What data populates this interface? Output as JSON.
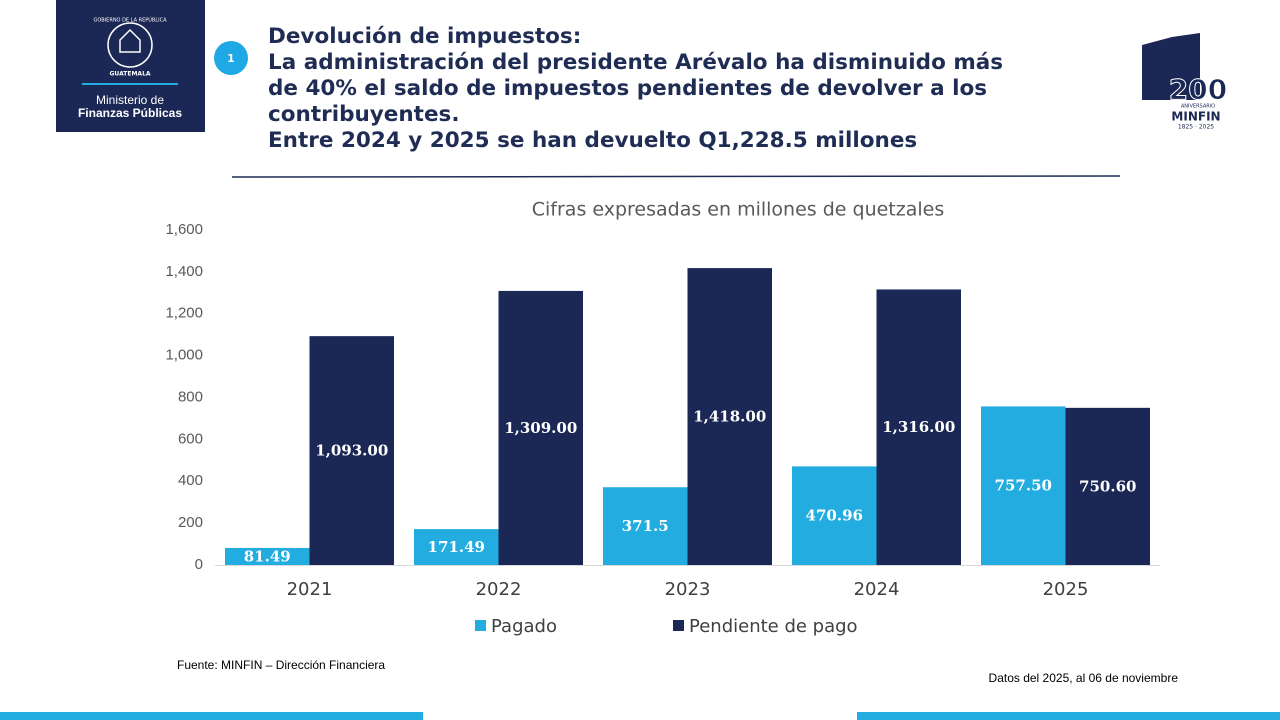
{
  "header": {
    "badge": "1",
    "title_lines": [
      "Devolución de impuestos:",
      "La administración del presidente Arévalo ha disminuido más",
      "de 40%  el saldo de impuestos pendientes de devolver a los",
      "contribuyentes.",
      "Entre 2024 y 2025 se han devuelto Q1,228.5 millones"
    ]
  },
  "logo_left": {
    "seal_top": "GOBIERNO DE LA REPÚBLICA",
    "seal_bottom": "GUATEMALA",
    "line1": "Ministerio de",
    "line2": "Finanzas Públicas"
  },
  "logo_right": {
    "number": "200",
    "caption": "ANIVERSARIO",
    "name": "MINFIN",
    "years": "1825 · 2025"
  },
  "chart_data": {
    "type": "bar",
    "subtitle": "Cifras expresadas en millones de quetzales",
    "categories": [
      "2021",
      "2022",
      "2023",
      "2024",
      "2025"
    ],
    "series": [
      {
        "name": "Pagado",
        "color": "#22ace0",
        "values": [
          81.49,
          171.49,
          371.5,
          470.96,
          757.5
        ],
        "value_labels": [
          "81.49",
          "171.49",
          "371.5",
          "470.96",
          "757.50"
        ]
      },
      {
        "name": "Pendiente de pago",
        "color": "#1b2755",
        "values": [
          1093,
          1309,
          1418,
          1316,
          750.6
        ],
        "value_labels": [
          "1,093.00",
          "1,309.00",
          "1,418.00",
          "1,316.00",
          "750.60"
        ]
      }
    ],
    "ylim": [
      0,
      1600
    ],
    "yticks": [
      0,
      200,
      400,
      600,
      800,
      {
        "value": 1000,
        "label": "1,000"
      },
      {
        "value": 1200,
        "label": "1,200"
      },
      {
        "value": 1400,
        "label": "1,400"
      },
      {
        "value": 1600,
        "label": "1,600"
      }
    ],
    "grid": false,
    "legend": "bottom"
  },
  "footer": {
    "source": "Fuente: MINFIN – Dirección Financiera",
    "date_note": "Datos del 2025,  al  06 de noviembre"
  }
}
